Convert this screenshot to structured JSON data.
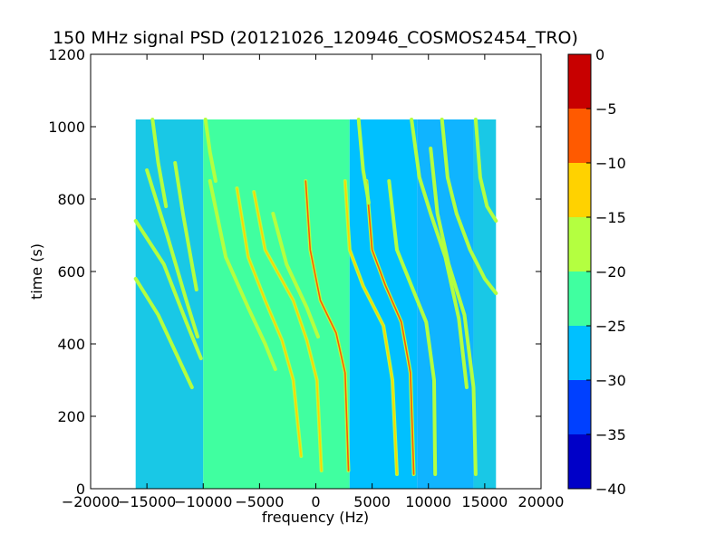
{
  "chart_data": {
    "type": "heatmap",
    "title": "150 MHz signal PSD (20121026_120946_COSMOS2454_TRO)",
    "xlabel": "frequency (Hz)",
    "ylabel": "time (s)",
    "xlim": [
      -20000,
      20000
    ],
    "ylim": [
      0,
      1200
    ],
    "x_ticks": [
      -20000,
      -15000,
      -10000,
      -5000,
      0,
      5000,
      10000,
      15000,
      20000
    ],
    "y_ticks": [
      0,
      200,
      400,
      600,
      800,
      1000
    ],
    "data_extent": {
      "x": [
        -16000,
        16000
      ],
      "y": [
        0,
        1020
      ]
    },
    "colorbar": {
      "range": [
        -40,
        0
      ],
      "ticks": [
        0,
        -5,
        -10,
        -15,
        -20,
        -25,
        -30,
        -35,
        -40
      ],
      "levels": [
        {
          "from": -40,
          "to": -35,
          "color": "#0000c8"
        },
        {
          "from": -35,
          "to": -30,
          "color": "#0040ff"
        },
        {
          "from": -30,
          "to": -25,
          "color": "#00c0ff"
        },
        {
          "from": -25,
          "to": -20,
          "color": "#40ffa0"
        },
        {
          "from": -20,
          "to": -15,
          "color": "#b4ff40"
        },
        {
          "from": -15,
          "to": -10,
          "color": "#ffd200"
        },
        {
          "from": -10,
          "to": -5,
          "color": "#ff5a00"
        },
        {
          "from": -5,
          "to": 0,
          "color": "#c80000"
        }
      ]
    },
    "background_regions": [
      {
        "x": [
          -16000,
          -10000
        ],
        "value": -25,
        "color": "#19c8e6"
      },
      {
        "x": [
          -10000,
          3000
        ],
        "value": -22,
        "color": "#40ffa0"
      },
      {
        "x": [
          3000,
          9000
        ],
        "value": -28,
        "color": "#00c0ff"
      },
      {
        "x": [
          9000,
          14000
        ],
        "value": -29,
        "color": "#10b4ff"
      },
      {
        "x": [
          14000,
          16000
        ],
        "value": -26,
        "color": "#19c8e6"
      }
    ],
    "traces": [
      {
        "peak_level": -17,
        "points": [
          [
            -16000,
            740
          ],
          [
            -13500,
            620
          ],
          [
            -11500,
            460
          ],
          [
            -10200,
            360
          ]
        ]
      },
      {
        "peak_level": -17,
        "points": [
          [
            -16000,
            580
          ],
          [
            -14000,
            480
          ],
          [
            -12500,
            380
          ],
          [
            -11000,
            280
          ]
        ]
      },
      {
        "peak_level": -17,
        "points": [
          [
            -15000,
            880
          ],
          [
            -13200,
            700
          ],
          [
            -11500,
            520
          ],
          [
            -10500,
            420
          ]
        ]
      },
      {
        "peak_level": -17,
        "points": [
          [
            -12500,
            900
          ],
          [
            -11800,
            760
          ],
          [
            -11000,
            620
          ],
          [
            -10600,
            550
          ]
        ]
      },
      {
        "peak_level": -16,
        "points": [
          [
            -9400,
            850
          ],
          [
            -8000,
            640
          ],
          [
            -6000,
            500
          ],
          [
            -4500,
            400
          ],
          [
            -3600,
            330
          ]
        ]
      },
      {
        "peak_level": -10,
        "points": [
          [
            -7000,
            830
          ],
          [
            -6000,
            640
          ],
          [
            -4500,
            520
          ],
          [
            -3000,
            410
          ],
          [
            -2000,
            300
          ],
          [
            -1300,
            90
          ]
        ]
      },
      {
        "peak_level": -10,
        "points": [
          [
            -5500,
            820
          ],
          [
            -4500,
            660
          ],
          [
            -2000,
            520
          ],
          [
            -800,
            410
          ],
          [
            100,
            300
          ],
          [
            500,
            50
          ]
        ]
      },
      {
        "peak_level": -8,
        "points": [
          [
            -900,
            850
          ],
          [
            -500,
            660
          ],
          [
            400,
            520
          ],
          [
            1800,
            430
          ],
          [
            2600,
            320
          ],
          [
            2900,
            50
          ]
        ]
      },
      {
        "peak_level": -16,
        "points": [
          [
            -3800,
            760
          ],
          [
            -2600,
            620
          ],
          [
            -800,
            500
          ],
          [
            200,
            420
          ]
        ]
      },
      {
        "peak_level": -10,
        "points": [
          [
            2600,
            850
          ],
          [
            3000,
            660
          ],
          [
            4200,
            560
          ],
          [
            6000,
            450
          ],
          [
            6800,
            300
          ],
          [
            7200,
            40
          ]
        ]
      },
      {
        "peak_level": -9,
        "points": [
          [
            4500,
            850
          ],
          [
            5000,
            660
          ],
          [
            6200,
            560
          ],
          [
            7600,
            460
          ],
          [
            8400,
            320
          ],
          [
            8700,
            40
          ]
        ]
      },
      {
        "peak_level": -16,
        "points": [
          [
            6500,
            850
          ],
          [
            7200,
            660
          ],
          [
            8500,
            560
          ],
          [
            9800,
            460
          ],
          [
            10500,
            300
          ],
          [
            10600,
            40
          ]
        ]
      },
      {
        "peak_level": -16,
        "points": [
          [
            10200,
            940
          ],
          [
            10800,
            760
          ],
          [
            11800,
            620
          ],
          [
            13200,
            480
          ],
          [
            14000,
            280
          ],
          [
            14200,
            40
          ]
        ]
      },
      {
        "peak_level": -17,
        "points": [
          [
            8500,
            1020
          ],
          [
            9200,
            860
          ],
          [
            10200,
            760
          ],
          [
            11500,
            640
          ],
          [
            12700,
            470
          ],
          [
            13400,
            280
          ]
        ]
      },
      {
        "peak_level": -18,
        "points": [
          [
            14200,
            1020
          ],
          [
            14600,
            860
          ],
          [
            15200,
            780
          ],
          [
            16000,
            740
          ]
        ]
      },
      {
        "peak_level": -18,
        "points": [
          [
            11200,
            1020
          ],
          [
            11700,
            860
          ],
          [
            12500,
            760
          ],
          [
            13700,
            660
          ],
          [
            15000,
            580
          ],
          [
            16000,
            540
          ]
        ]
      },
      {
        "peak_level": -18,
        "points": [
          [
            -14500,
            1020
          ],
          [
            -14000,
            900
          ],
          [
            -13300,
            780
          ]
        ]
      },
      {
        "peak_level": -18,
        "points": [
          [
            -9800,
            1020
          ],
          [
            -9400,
            930
          ],
          [
            -8900,
            850
          ]
        ]
      },
      {
        "peak_level": -18,
        "points": [
          [
            3800,
            1020
          ],
          [
            4200,
            880
          ],
          [
            4700,
            790
          ]
        ]
      }
    ]
  }
}
